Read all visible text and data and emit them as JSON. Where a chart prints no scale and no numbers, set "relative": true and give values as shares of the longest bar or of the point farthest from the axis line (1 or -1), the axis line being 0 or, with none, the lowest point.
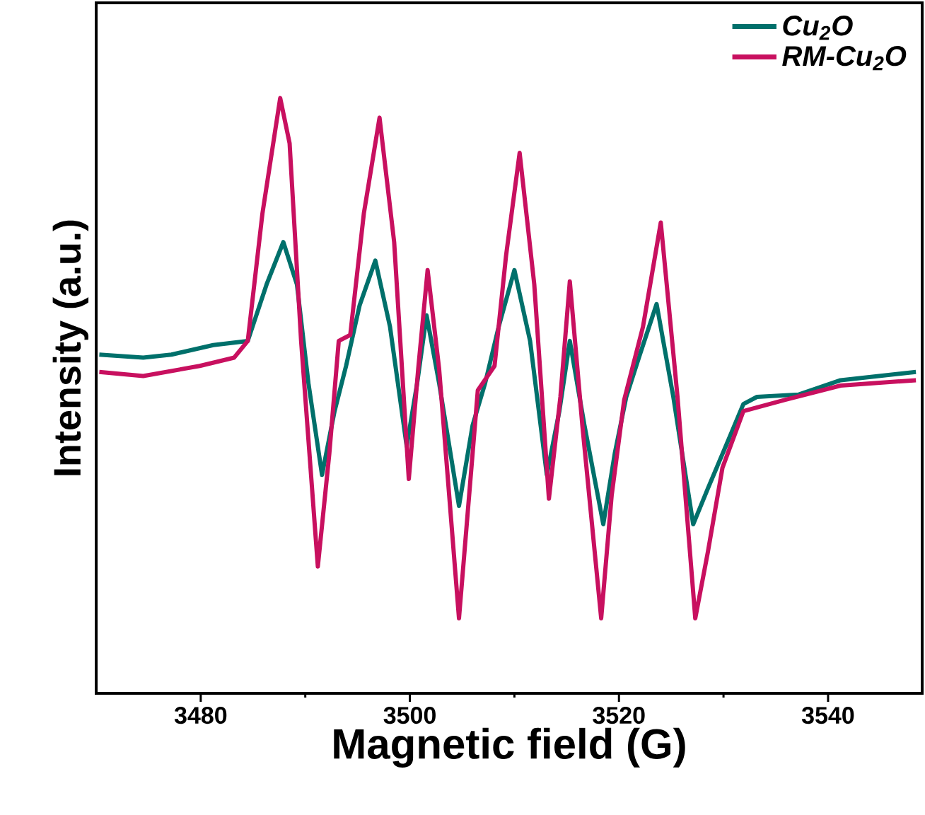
{
  "chart_data": {
    "type": "line",
    "relative": true,
    "xlabel": "Magnetic field (G)",
    "ylabel": "Intensity (a.u.)",
    "xlim": [
      3470,
      3549
    ],
    "xticks": [
      3480,
      {
        "value": 3490,
        "label": null
      },
      3500,
      {
        "value": 3510,
        "label": null
      },
      3520,
      {
        "value": 3530,
        "label": null
      },
      3540
    ],
    "legend": "top right",
    "grid": false,
    "marker": "none",
    "line_style": "solid",
    "series": [
      {
        "name": "Cu$_{2}$O",
        "color": "#00706b",
        "x": [
          3470.3,
          3474.5,
          3477.2,
          3481.2,
          3484.5,
          3486.3,
          3487.9,
          3489.2,
          3490.3,
          3491.6,
          3492.8,
          3493.9,
          3495.2,
          3496.7,
          3498.1,
          3499.7,
          3500.7,
          3501.6,
          3502.8,
          3504.7,
          3506.0,
          3507.2,
          3508.5,
          3510.0,
          3511.5,
          3513.1,
          3514.3,
          3515.3,
          3516.7,
          3518.5,
          3519.6,
          3520.7,
          3522.0,
          3523.6,
          3525.2,
          3527.1,
          3528.5,
          3530.5,
          3531.9,
          3533.2,
          3537.2,
          3541.2,
          3548.4
        ],
        "values": [
          0.569,
          0.564,
          0.569,
          0.585,
          0.592,
          0.687,
          0.758,
          0.687,
          0.521,
          0.367,
          0.474,
          0.55,
          0.652,
          0.727,
          0.616,
          0.415,
          0.521,
          0.635,
          0.521,
          0.315,
          0.45,
          0.521,
          0.616,
          0.711,
          0.592,
          0.367,
          0.474,
          0.592,
          0.45,
          0.284,
          0.403,
          0.498,
          0.569,
          0.654,
          0.498,
          0.284,
          0.344,
          0.427,
          0.486,
          0.498,
          0.502,
          0.526,
          0.54
        ]
      },
      {
        "name": "RM-Cu$_{2}$O",
        "color": "#c8105f",
        "x": [
          3470.3,
          3474.5,
          3479.9,
          3483.2,
          3484.5,
          3485.9,
          3487.6,
          3488.5,
          3489.6,
          3491.2,
          3492.3,
          3493.2,
          3494.3,
          3495.6,
          3497.1,
          3498.5,
          3499.9,
          3500.8,
          3501.7,
          3502.8,
          3504.7,
          3506.5,
          3508.1,
          3509.2,
          3510.5,
          3511.9,
          3513.3,
          3514.4,
          3515.3,
          3516.5,
          3518.3,
          3519.3,
          3520.5,
          3522.3,
          3524.0,
          3525.6,
          3527.3,
          3528.5,
          3529.9,
          3531.9,
          3535.9,
          3541.2,
          3548.4
        ],
        "values": [
          0.54,
          0.533,
          0.55,
          0.564,
          0.592,
          0.806,
          1.0,
          0.924,
          0.592,
          0.213,
          0.403,
          0.592,
          0.602,
          0.806,
          0.967,
          0.758,
          0.36,
          0.545,
          0.711,
          0.545,
          0.126,
          0.509,
          0.55,
          0.735,
          0.908,
          0.687,
          0.327,
          0.498,
          0.692,
          0.45,
          0.126,
          0.332,
          0.493,
          0.616,
          0.791,
          0.498,
          0.126,
          0.237,
          0.379,
          0.474,
          0.493,
          0.517,
          0.526
        ]
      }
    ]
  }
}
